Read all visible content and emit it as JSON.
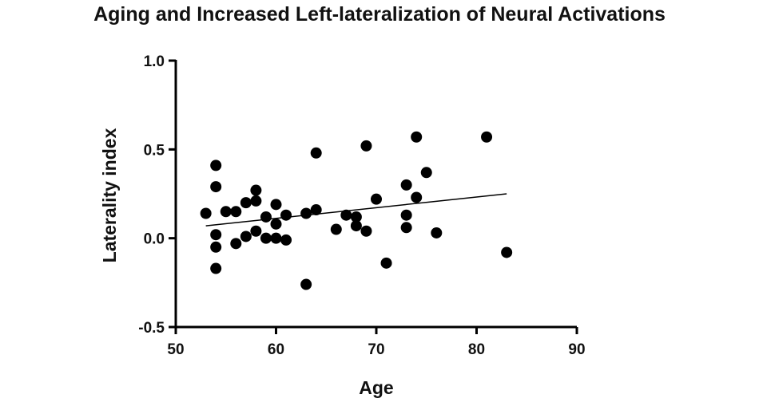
{
  "chart_data": {
    "type": "scatter",
    "title": "Aging and Increased Left-lateralization of Neural Activations",
    "xlabel": "Age",
    "ylabel": "Laterality index",
    "xlim": [
      50,
      90
    ],
    "ylim": [
      -0.5,
      1.0
    ],
    "xticks": [
      50,
      60,
      70,
      80,
      90
    ],
    "yticks": [
      1.0,
      0.5,
      0.0,
      -0.5
    ],
    "xtick_labels": [
      "50",
      "60",
      "70",
      "80",
      "90"
    ],
    "ytick_labels": [
      "1.0",
      "0.5",
      "0.0",
      "-0.5"
    ],
    "grid": false,
    "legend": "none",
    "marker_color": "#000000",
    "points": [
      {
        "x": 53,
        "y": 0.14
      },
      {
        "x": 54,
        "y": 0.41
      },
      {
        "x": 54,
        "y": 0.29
      },
      {
        "x": 54,
        "y": 0.02
      },
      {
        "x": 54,
        "y": -0.05
      },
      {
        "x": 54,
        "y": -0.17
      },
      {
        "x": 55,
        "y": 0.15
      },
      {
        "x": 56,
        "y": 0.15
      },
      {
        "x": 56,
        "y": -0.03
      },
      {
        "x": 57,
        "y": 0.2
      },
      {
        "x": 57,
        "y": 0.01
      },
      {
        "x": 58,
        "y": 0.27
      },
      {
        "x": 58,
        "y": 0.21
      },
      {
        "x": 58,
        "y": 0.04
      },
      {
        "x": 59,
        "y": 0.12
      },
      {
        "x": 59,
        "y": 0.0
      },
      {
        "x": 60,
        "y": 0.19
      },
      {
        "x": 60,
        "y": 0.08
      },
      {
        "x": 60,
        "y": 0.0
      },
      {
        "x": 61,
        "y": 0.13
      },
      {
        "x": 61,
        "y": -0.01
      },
      {
        "x": 63,
        "y": 0.14
      },
      {
        "x": 63,
        "y": -0.26
      },
      {
        "x": 64,
        "y": 0.48
      },
      {
        "x": 64,
        "y": 0.16
      },
      {
        "x": 66,
        "y": 0.05
      },
      {
        "x": 67,
        "y": 0.13
      },
      {
        "x": 68,
        "y": 0.12
      },
      {
        "x": 68,
        "y": 0.07
      },
      {
        "x": 69,
        "y": 0.52
      },
      {
        "x": 69,
        "y": 0.04
      },
      {
        "x": 70,
        "y": 0.22
      },
      {
        "x": 71,
        "y": -0.14
      },
      {
        "x": 73,
        "y": 0.3
      },
      {
        "x": 73,
        "y": 0.13
      },
      {
        "x": 73,
        "y": 0.06
      },
      {
        "x": 74,
        "y": 0.57
      },
      {
        "x": 74,
        "y": 0.23
      },
      {
        "x": 75,
        "y": 0.37
      },
      {
        "x": 76,
        "y": 0.03
      },
      {
        "x": 81,
        "y": 0.57
      },
      {
        "x": 83,
        "y": -0.08
      }
    ],
    "trend_line": {
      "x": [
        53,
        83
      ],
      "y": [
        0.07,
        0.25
      ]
    }
  }
}
